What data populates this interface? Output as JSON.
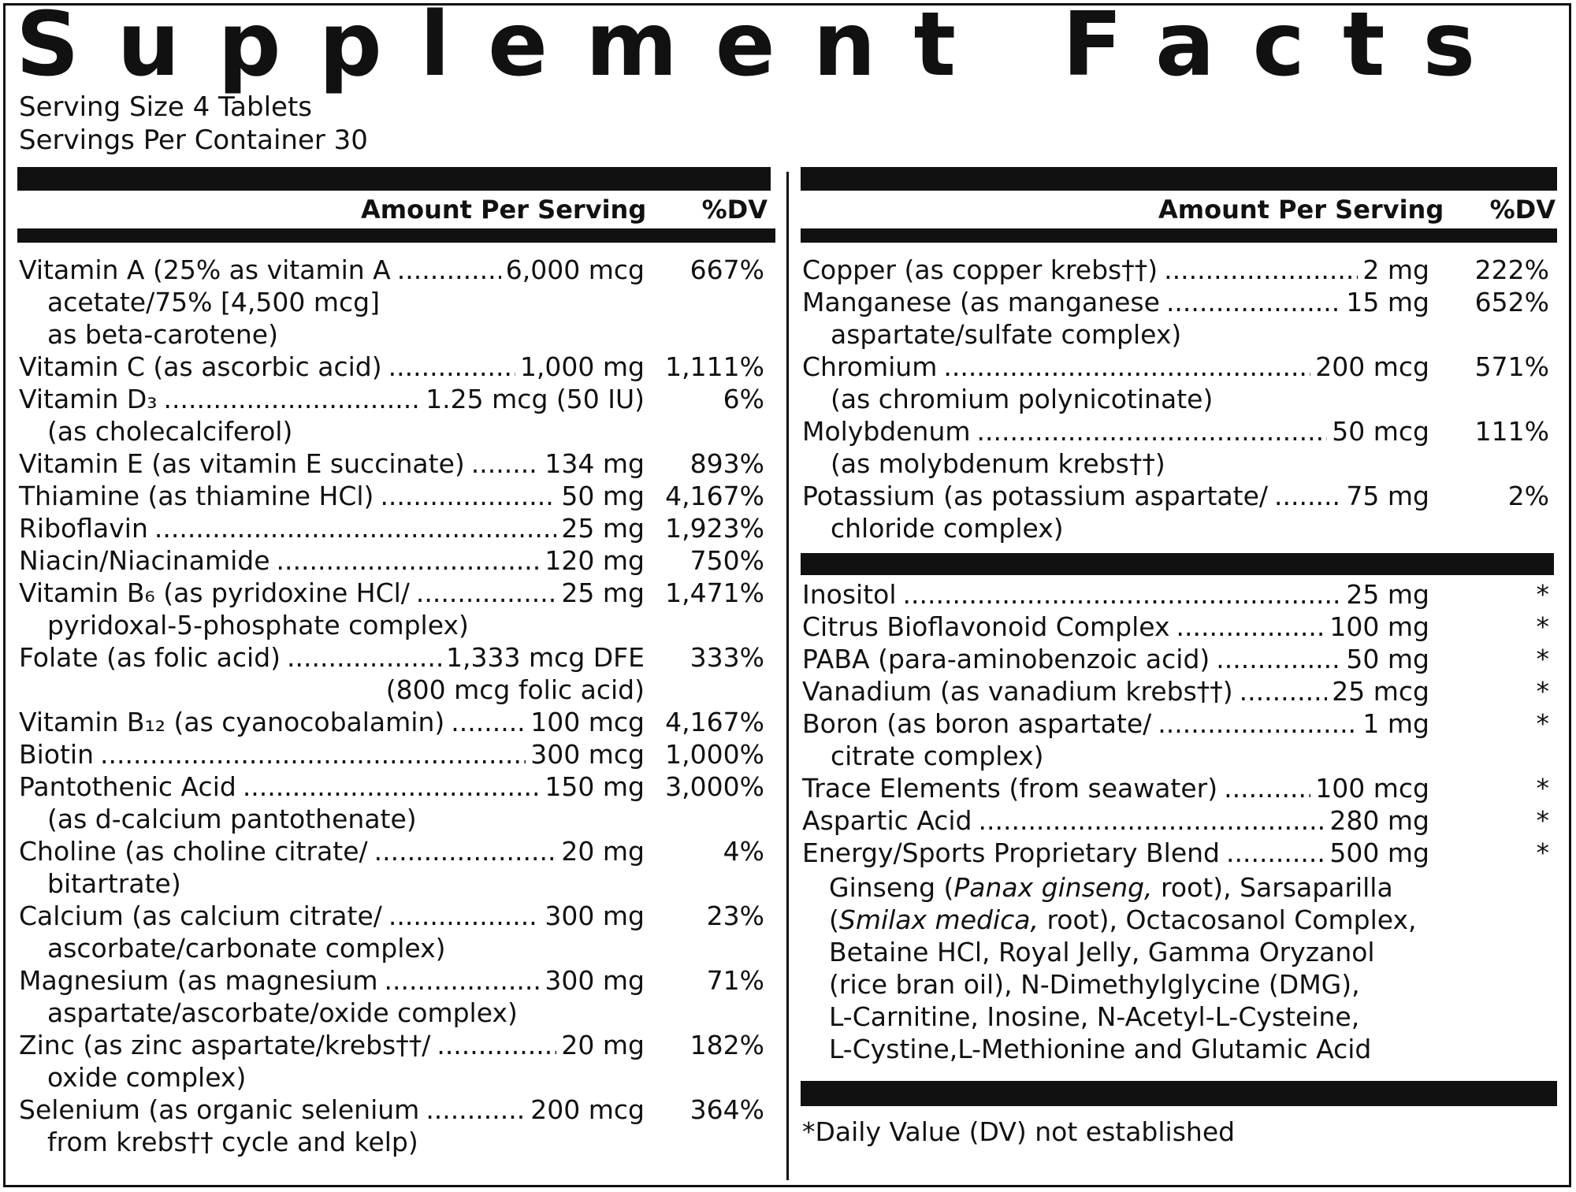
{
  "title": "Supplement Facts",
  "serving_size": "Serving Size 4 Tablets",
  "servings_per_container": "Servings Per Container 30",
  "header": {
    "amount": "Amount Per Serving",
    "dv": "%DV"
  },
  "left_rows": [
    {
      "lines": [
        "Vitamin A (25% as vitamin A",
        "acetate/75% [4,500 mcg]",
        "as beta-carotene)"
      ],
      "amount": "6,000 mcg",
      "dv": "667%"
    },
    {
      "lines": [
        "Vitamin C (as ascorbic acid)"
      ],
      "amount": "1,000 mg",
      "dv": "1,111%"
    },
    {
      "lines": [
        "Vitamin D₃",
        "(as cholecalciferol)"
      ],
      "amount": "1.25 mcg (50 IU)",
      "dv": "6%"
    },
    {
      "lines": [
        "Vitamin E (as vitamin E succinate)"
      ],
      "amount": "134 mg",
      "dv": "893%"
    },
    {
      "lines": [
        "Thiamine (as thiamine HCl)"
      ],
      "amount": "50 mg",
      "dv": "4,167%"
    },
    {
      "lines": [
        "Riboflavin"
      ],
      "amount": "25 mg",
      "dv": "1,923%"
    },
    {
      "lines": [
        "Niacin/Niacinamide"
      ],
      "amount": "120 mg",
      "dv": "750%"
    },
    {
      "lines": [
        "Vitamin B₆ (as pyridoxine HCl/",
        "pyridoxal-5-phosphate complex)"
      ],
      "amount": "25 mg",
      "dv": "1,471%"
    },
    {
      "lines": [
        "Folate (as folic acid)",
        ""
      ],
      "amount": "1,333 mcg DFE",
      "amount2": "(800 mcg folic acid)",
      "dv": "333%"
    },
    {
      "lines": [
        "Vitamin B₁₂ (as cyanocobalamin)"
      ],
      "amount": "100 mcg",
      "dv": "4,167%"
    },
    {
      "lines": [
        "Biotin"
      ],
      "amount": "300 mcg",
      "dv": "1,000%"
    },
    {
      "lines": [
        "Pantothenic Acid",
        "(as d-calcium pantothenate)"
      ],
      "amount": "150 mg",
      "dv": "3,000%"
    },
    {
      "lines": [
        "Choline (as choline citrate/",
        "bitartrate)"
      ],
      "amount": "20 mg",
      "dv": "4%"
    },
    {
      "lines": [
        "Calcium (as calcium citrate/",
        "ascorbate/carbonate complex)"
      ],
      "amount": "300 mg",
      "dv": "23%"
    },
    {
      "lines": [
        "Magnesium (as magnesium",
        "aspartate/ascorbate/oxide complex)"
      ],
      "amount": "300 mg",
      "dv": "71%"
    },
    {
      "lines": [
        "Zinc (as zinc aspartate/krebs††/",
        "oxide complex)"
      ],
      "amount": "20 mg",
      "dv": "182%"
    },
    {
      "lines": [
        "Selenium (as organic selenium",
        "from krebs†† cycle and kelp)"
      ],
      "amount": "200 mcg",
      "dv": "364%"
    }
  ],
  "right_rows": [
    {
      "lines": [
        "Copper (as copper krebs††)"
      ],
      "amount": "2 mg",
      "dv": "222%"
    },
    {
      "lines": [
        "Manganese (as manganese",
        "aspartate/sulfate complex)"
      ],
      "amount": "15 mg",
      "dv": "652%"
    },
    {
      "lines": [
        "Chromium",
        "(as chromium polynicotinate)"
      ],
      "amount": "200 mcg",
      "dv": "571%"
    },
    {
      "lines": [
        "Molybdenum",
        "(as molybdenum krebs††)"
      ],
      "amount": "50 mcg",
      "dv": "111%"
    },
    {
      "lines": [
        "Potassium (as potassium aspartate/",
        "chloride complex)"
      ],
      "amount": "75 mg",
      "dv": "2%"
    }
  ],
  "right_rows2": [
    {
      "lines": [
        "Inositol"
      ],
      "amount": "25 mg",
      "dv": "*"
    },
    {
      "lines": [
        "Citrus Bioflavonoid Complex"
      ],
      "amount": "100 mg",
      "dv": "*"
    },
    {
      "lines": [
        "PABA (para-aminobenzoic acid)"
      ],
      "amount": "50 mg",
      "dv": "*"
    },
    {
      "lines": [
        "Vanadium (as vanadium krebs††)"
      ],
      "amount": "25 mcg",
      "dv": "*"
    },
    {
      "lines": [
        "Boron (as boron aspartate/",
        "citrate complex)"
      ],
      "amount": "1 mg",
      "dv": "*"
    },
    {
      "lines": [
        "Trace Elements (from seawater)"
      ],
      "amount": "100 mcg",
      "dv": "*"
    },
    {
      "lines": [
        "Aspartic Acid"
      ],
      "amount": "280 mg",
      "dv": "*"
    },
    {
      "lines": [
        "Energy/Sports Proprietary Blend"
      ],
      "amount": "500 mg",
      "dv": "*"
    }
  ],
  "blend_lines": [
    "Ginseng (Panax ginseng, root), Sarsaparilla",
    "(Smilax medica, root), Octacosanol Complex,",
    "Betaine HCl, Royal Jelly, Gamma Oryzanol",
    "(rice bran oil), N-Dimethylglycine (DMG),",
    "L-Carnitine, Inosine, N-Acetyl-L-Cysteine,",
    "L-Cystine,L-Methionine and Glutamic Acid"
  ],
  "footnote": "*Daily Value (DV) not established"
}
